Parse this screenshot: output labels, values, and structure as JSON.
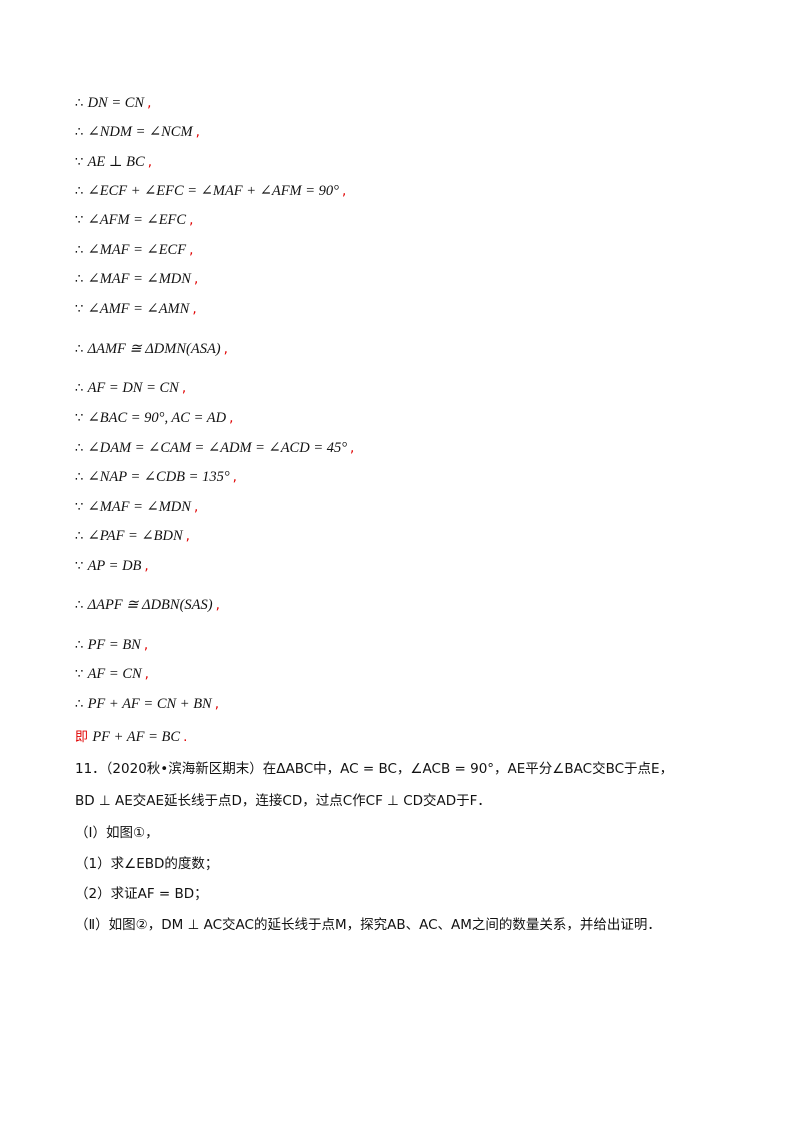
{
  "proof_lines": [
    {
      "prefix": "∴",
      "math": "DN = CN",
      "suffix": ","
    },
    {
      "prefix": "∴",
      "math": "∠NDM = ∠NCM",
      "suffix": ","
    },
    {
      "prefix": "∵",
      "math": "AE ⊥ BC",
      "suffix": ","
    },
    {
      "prefix": "∴",
      "math": "∠ECF + ∠EFC = ∠MAF + ∠AFM = 90°",
      "suffix": ","
    },
    {
      "prefix": "∵",
      "math": "∠AFM = ∠EFC",
      "suffix": ","
    },
    {
      "prefix": "∴",
      "math": "∠MAF = ∠ECF",
      "suffix": ","
    },
    {
      "prefix": "∴",
      "math": "∠MAF = ∠MDN",
      "suffix": ","
    },
    {
      "prefix": "∵",
      "math": "∠AMF = ∠AMN",
      "suffix": ","
    },
    {
      "prefix": "∴",
      "math": "ΔAMF ≅ ΔDMN(ASA)",
      "suffix": ","
    },
    {
      "prefix": "∴",
      "math": "AF = DN = CN",
      "suffix": ","
    },
    {
      "prefix": "∵",
      "math": "∠BAC = 90°,   AC = AD",
      "suffix": ","
    },
    {
      "prefix": "∴",
      "math": "∠DAM = ∠CAM = ∠ADM = ∠ACD = 45°",
      "suffix": ","
    },
    {
      "prefix": "∴",
      "math": "∠NAP = ∠CDB = 135°",
      "suffix": ","
    },
    {
      "prefix": "∵",
      "math": "∠MAF = ∠MDN",
      "suffix": ","
    },
    {
      "prefix": "∴",
      "math": "∠PAF = ∠BDN",
      "suffix": ","
    },
    {
      "prefix": "∵",
      "math": "AP = DB",
      "suffix": ","
    },
    {
      "prefix": "∴",
      "math": "ΔAPF ≅ ΔDBN(SAS)",
      "suffix": ","
    },
    {
      "prefix": "∴",
      "math": "PF = BN",
      "suffix": ","
    },
    {
      "prefix": "∵",
      "math": "AF = CN",
      "suffix": ","
    },
    {
      "prefix": "∴",
      "math": "PF + AF = CN + BN",
      "suffix": ","
    },
    {
      "prefix": "即",
      "math": "PF + AF = BC",
      "suffix": "."
    }
  ],
  "problem": {
    "line1": "11．（2020秋•滨海新区期末）在ΔABC中，AC = BC，∠ACB = 90°，AE平分∠BAC交BC于点E，",
    "line2": "BD ⊥ AE交AE延长线于点D，连接CD，过点C作CF ⊥ CD交AD于F．",
    "line3": "（Ⅰ）如图①，",
    "line4": "（1）求∠EBD的度数；",
    "line5": "（2）求证AF = BD；",
    "line6": "（Ⅱ）如图②，DM ⊥ AC交AC的延长线于点M，探究AB、AC、AM之间的数量关系，并给出证明．"
  }
}
